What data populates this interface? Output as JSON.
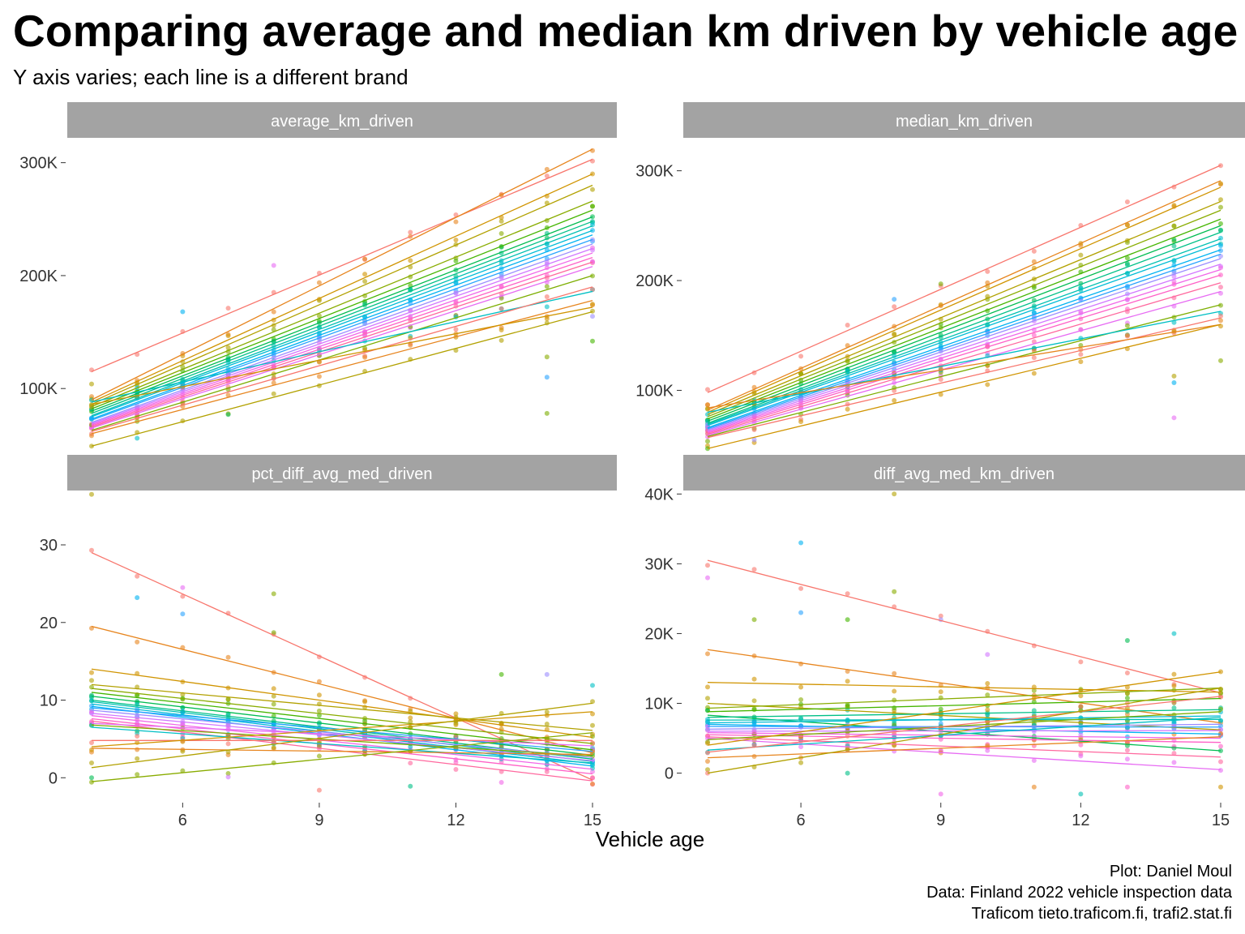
{
  "title": "Comparing average and median km driven by vehicle age",
  "subtitle": "Y axis varies; each line is a different brand",
  "caption": [
    "Plot: Daniel Moul",
    "Data: Finland 2022 vehicle inspection data",
    "Traficom tieto.traficom.fi, trafi2.stat.fi"
  ],
  "colors": {
    "strip_bg": "#a3a3a3",
    "strip_text": "#ffffff",
    "brand_palette": [
      "#F8766D",
      "#E7851E",
      "#D09400",
      "#B2A100",
      "#89AC00",
      "#45B500",
      "#00BC51",
      "#00C087",
      "#00C0B2",
      "#00BCD6",
      "#00B3F2",
      "#29A3FF",
      "#9C8DFF",
      "#D277FF",
      "#F166E8",
      "#FF61C7",
      "#FF689E",
      "#E76BF3",
      "#7CAE00",
      "#00BFC4"
    ]
  },
  "chart_data": {
    "type": "scatter",
    "facet_layout": "2x2",
    "xlabel": "Vehicle age",
    "x_ticks": [
      6,
      9,
      12,
      15
    ],
    "xlim": [
      3.7,
      15.3
    ],
    "x": [
      4,
      5,
      6,
      7,
      8,
      9,
      10,
      11,
      12,
      13,
      14,
      15
    ],
    "grid": false,
    "legend": "none",
    "series_note": "each line is a different brand",
    "panels": [
      {
        "facet": "average_km_driven",
        "ylim": [
          42000,
          322000
        ],
        "y_ticks": [
          100000,
          200000,
          300000
        ],
        "y_tick_labels": [
          "100K",
          "200K",
          "300K"
        ],
        "brand_lines": [
          {
            "start": 115000,
            "end": 303000
          },
          {
            "start": 90000,
            "end": 312000
          },
          {
            "start": 88000,
            "end": 290000
          },
          {
            "start": 86000,
            "end": 280000
          },
          {
            "start": 84000,
            "end": 266000
          },
          {
            "start": 82000,
            "end": 258000
          },
          {
            "start": 80000,
            "end": 252000
          },
          {
            "start": 78000,
            "end": 248000
          },
          {
            "start": 76000,
            "end": 244000
          },
          {
            "start": 75000,
            "end": 240000
          },
          {
            "start": 73000,
            "end": 236000
          },
          {
            "start": 72000,
            "end": 232000
          },
          {
            "start": 70000,
            "end": 228000
          },
          {
            "start": 69000,
            "end": 224000
          },
          {
            "start": 68000,
            "end": 220000
          },
          {
            "start": 67000,
            "end": 216000
          },
          {
            "start": 66000,
            "end": 212000
          },
          {
            "start": 65000,
            "end": 208000
          },
          {
            "start": 63000,
            "end": 200000
          },
          {
            "start": 88000,
            "end": 186000
          },
          {
            "start": 62000,
            "end": 190000
          },
          {
            "start": 60000,
            "end": 178000
          },
          {
            "start": 86000,
            "end": 172000
          },
          {
            "start": 49000,
            "end": 168000
          }
        ],
        "outliers": [
          {
            "x": 4,
            "y": 104000
          },
          {
            "x": 6,
            "y": 168000
          },
          {
            "x": 8,
            "y": 209000
          },
          {
            "x": 14,
            "y": 128000
          },
          {
            "x": 14,
            "y": 110000
          },
          {
            "x": 14,
            "y": 78000
          },
          {
            "x": 15,
            "y": 142000
          },
          {
            "x": 15,
            "y": 164000
          },
          {
            "x": 5,
            "y": 56000
          },
          {
            "x": 7,
            "y": 77000
          }
        ]
      },
      {
        "facet": "median_km_driven",
        "ylim": [
          42000,
          330000
        ],
        "y_ticks": [
          100000,
          200000,
          300000
        ],
        "y_tick_labels": [
          "100K",
          "200K",
          "300K"
        ],
        "brand_lines": [
          {
            "start": 98000,
            "end": 305000
          },
          {
            "start": 82000,
            "end": 291000
          },
          {
            "start": 80000,
            "end": 285000
          },
          {
            "start": 78000,
            "end": 272000
          },
          {
            "start": 76000,
            "end": 264000
          },
          {
            "start": 74000,
            "end": 256000
          },
          {
            "start": 72000,
            "end": 250000
          },
          {
            "start": 70000,
            "end": 244000
          },
          {
            "start": 69000,
            "end": 238000
          },
          {
            "start": 68000,
            "end": 234000
          },
          {
            "start": 66000,
            "end": 228000
          },
          {
            "start": 65000,
            "end": 224000
          },
          {
            "start": 64000,
            "end": 220000
          },
          {
            "start": 63000,
            "end": 215000
          },
          {
            "start": 62000,
            "end": 210000
          },
          {
            "start": 61000,
            "end": 205000
          },
          {
            "start": 60000,
            "end": 198000
          },
          {
            "start": 59000,
            "end": 190000
          },
          {
            "start": 58000,
            "end": 178000
          },
          {
            "start": 80000,
            "end": 172000
          },
          {
            "start": 57000,
            "end": 166000
          },
          {
            "start": 84000,
            "end": 160000
          },
          {
            "start": 47000,
            "end": 160000
          }
        ],
        "outliers": [
          {
            "x": 14,
            "y": 113000
          },
          {
            "x": 14,
            "y": 107000
          },
          {
            "x": 14,
            "y": 75000
          },
          {
            "x": 15,
            "y": 127000
          },
          {
            "x": 8,
            "y": 183000
          },
          {
            "x": 9,
            "y": 197000
          },
          {
            "x": 4,
            "y": 47000
          },
          {
            "x": 5,
            "y": 55000
          }
        ]
      },
      {
        "facet": "pct_diff_avg_med_driven",
        "ylim": [
          -3,
          37
        ],
        "y_ticks": [
          0,
          10,
          20,
          30
        ],
        "y_tick_labels": [
          "0",
          "10",
          "20",
          "30"
        ],
        "brand_lines": [
          {
            "start": 29,
            "end": -0.3
          },
          {
            "start": 19.5,
            "end": 3.2
          },
          {
            "start": 14,
            "end": 5.2
          },
          {
            "start": 12,
            "end": 6.1
          },
          {
            "start": 11.5,
            "end": 4.4
          },
          {
            "start": 11,
            "end": 3.6
          },
          {
            "start": 10.5,
            "end": 2.9
          },
          {
            "start": 10,
            "end": 2.4
          },
          {
            "start": 9.8,
            "end": 2.1
          },
          {
            "start": 9.5,
            "end": 1.8
          },
          {
            "start": 9.2,
            "end": 1.5
          },
          {
            "start": 9,
            "end": 3.4
          },
          {
            "start": 8.7,
            "end": 2.6
          },
          {
            "start": 8.3,
            "end": 2.2
          },
          {
            "start": 8,
            "end": 1.1
          },
          {
            "start": 7.6,
            "end": 0.5
          },
          {
            "start": 7.3,
            "end": -0.4
          },
          {
            "start": 7,
            "end": 4.1
          },
          {
            "start": 6.8,
            "end": 2.8
          },
          {
            "start": 6.5,
            "end": 1.9
          },
          {
            "start": 4.8,
            "end": 4.8
          },
          {
            "start": 3.8,
            "end": 3.0
          },
          {
            "start": 4.0,
            "end": 8.5
          },
          {
            "start": 1.3,
            "end": 9.6
          },
          {
            "start": -0.5,
            "end": 5.8
          }
        ],
        "outliers": [
          {
            "x": 4,
            "y": 36.5
          },
          {
            "x": 5,
            "y": 23.2
          },
          {
            "x": 6,
            "y": 24.5
          },
          {
            "x": 8,
            "y": 23.7
          },
          {
            "x": 6,
            "y": 21.1
          },
          {
            "x": 8,
            "y": 18.7
          },
          {
            "x": 13,
            "y": 13.3
          },
          {
            "x": 14,
            "y": 13.3
          },
          {
            "x": 15,
            "y": 11.9
          },
          {
            "x": 4,
            "y": 0
          },
          {
            "x": 7,
            "y": 0.1
          },
          {
            "x": 9,
            "y": -1.6
          },
          {
            "x": 11,
            "y": -1.1
          },
          {
            "x": 13,
            "y": -0.6
          },
          {
            "x": 15,
            "y": -0.8
          }
        ]
      },
      {
        "facet": "diff_avg_med_km_driven",
        "ylim": [
          -4000,
          40500
        ],
        "y_ticks": [
          0,
          10000,
          20000,
          30000,
          40000
        ],
        "y_tick_labels": [
          "0",
          "10K",
          "20K",
          "30K",
          "40K"
        ],
        "brand_lines": [
          {
            "start": 30500,
            "end": 11500
          },
          {
            "start": 17700,
            "end": 7200
          },
          {
            "start": 13000,
            "end": 11600
          },
          {
            "start": 10000,
            "end": 6200
          },
          {
            "start": 9300,
            "end": 12200
          },
          {
            "start": 8800,
            "end": 10700
          },
          {
            "start": 8300,
            "end": 3200
          },
          {
            "start": 8000,
            "end": 9100
          },
          {
            "start": 7600,
            "end": 7700
          },
          {
            "start": 7200,
            "end": 8200
          },
          {
            "start": 7000,
            "end": 5600
          },
          {
            "start": 6700,
            "end": 6600
          },
          {
            "start": 6300,
            "end": 7000
          },
          {
            "start": 6000,
            "end": 6100
          },
          {
            "start": 5800,
            "end": 5000
          },
          {
            "start": 5500,
            "end": 4400
          },
          {
            "start": 5200,
            "end": 2300
          },
          {
            "start": 5000,
            "end": 500
          },
          {
            "start": 4800,
            "end": 8800
          },
          {
            "start": 3300,
            "end": 8000
          },
          {
            "start": 3000,
            "end": 11000
          },
          {
            "start": 2200,
            "end": 5200
          },
          {
            "start": 4000,
            "end": 14500
          },
          {
            "start": 0,
            "end": 12200
          }
        ],
        "outliers": [
          {
            "x": 8,
            "y": 40000
          },
          {
            "x": 6,
            "y": 33000
          },
          {
            "x": 4,
            "y": 28000
          },
          {
            "x": 8,
            "y": 26000
          },
          {
            "x": 6,
            "y": 23000
          },
          {
            "x": 5,
            "y": 22000
          },
          {
            "x": 7,
            "y": 22000
          },
          {
            "x": 9,
            "y": 22000
          },
          {
            "x": 14,
            "y": 20000
          },
          {
            "x": 13,
            "y": 19000
          },
          {
            "x": 10,
            "y": 17000
          },
          {
            "x": 4,
            "y": 0
          },
          {
            "x": 7,
            "y": 0
          },
          {
            "x": 9,
            "y": -3000
          },
          {
            "x": 11,
            "y": -2000
          },
          {
            "x": 12,
            "y": -3000
          },
          {
            "x": 13,
            "y": -2000
          },
          {
            "x": 15,
            "y": -2000
          }
        ]
      }
    ]
  }
}
